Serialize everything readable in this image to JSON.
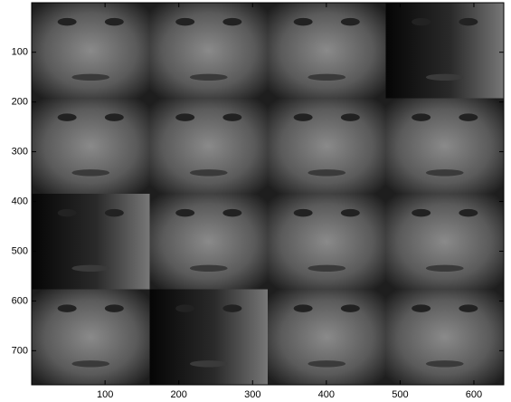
{
  "chart_data": {
    "type": "image",
    "xlim": [
      0.5,
      640.5
    ],
    "ylim": [
      0.5,
      768.5
    ],
    "xticks": [
      100,
      200,
      300,
      400,
      500,
      600
    ],
    "yticks": [
      100,
      200,
      300,
      400,
      500,
      600,
      700
    ]
  }
}
